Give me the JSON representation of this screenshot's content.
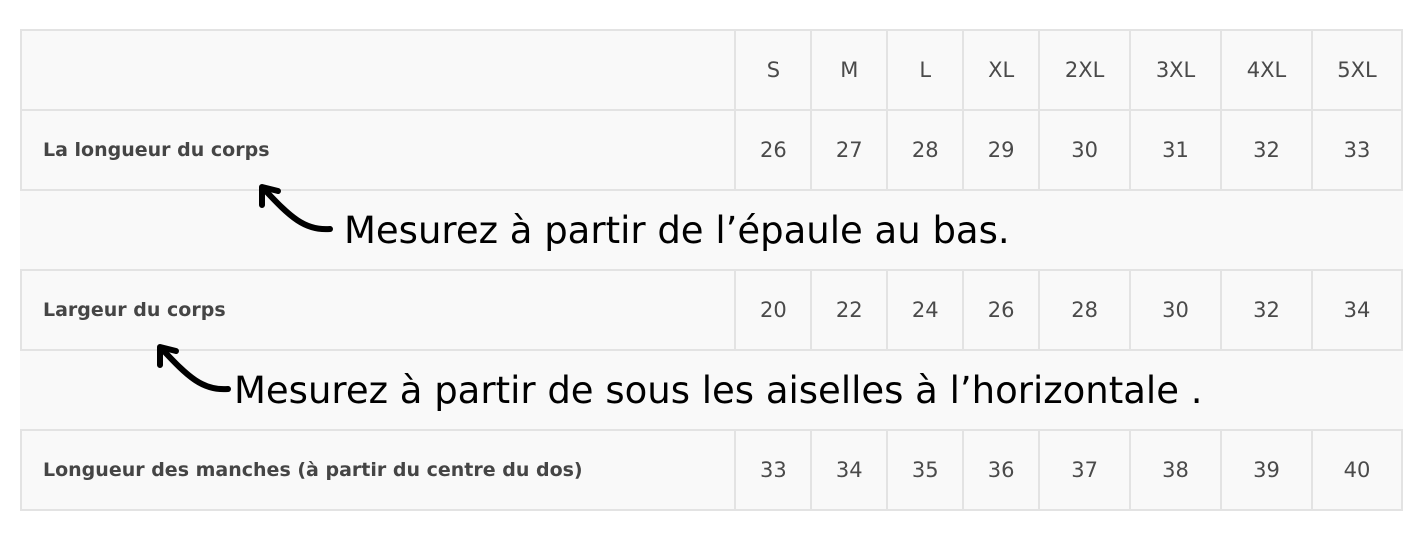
{
  "sizes": [
    "S",
    "M",
    "L",
    "XL",
    "2XL",
    "3XL",
    "4XL",
    "5XL"
  ],
  "rows": [
    {
      "label": "La longueur du corps",
      "values": [
        "26",
        "27",
        "28",
        "29",
        "30",
        "31",
        "32",
        "33"
      ],
      "note": "Mesurez à partir de l’épaule au bas."
    },
    {
      "label": "Largeur du corps",
      "values": [
        "20",
        "22",
        "24",
        "26",
        "28",
        "30",
        "32",
        "34"
      ],
      "note": "Mesurez à partir de sous les aiselles à l’horizontale ."
    },
    {
      "label": "Longueur des manches (à partir du centre du dos)",
      "values": [
        "33",
        "34",
        "35",
        "36",
        "37",
        "38",
        "39",
        "40"
      ]
    }
  ],
  "icons": {
    "arrow": "curved-arrow-icon"
  }
}
